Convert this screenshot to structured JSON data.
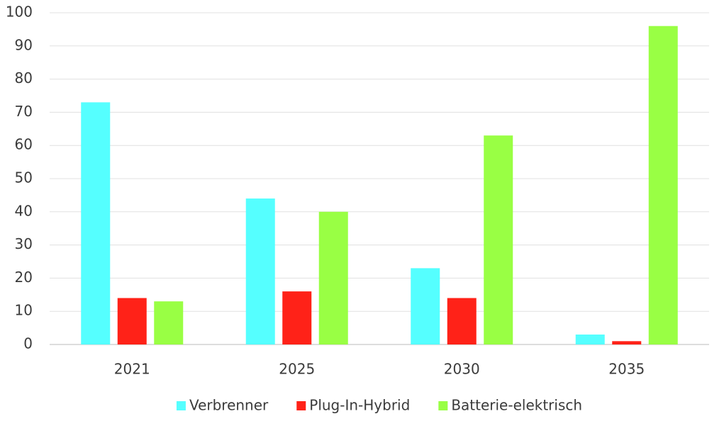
{
  "chart_data": {
    "type": "bar",
    "categories": [
      "2021",
      "2025",
      "2030",
      "2035"
    ],
    "series": [
      {
        "name": "Verbrenner",
        "color": "#55ffff",
        "values": [
          73,
          44,
          23,
          3
        ]
      },
      {
        "name": "Plug-In-Hybrid",
        "color": "#ff2218",
        "values": [
          14,
          16,
          14,
          1
        ]
      },
      {
        "name": "Batterie-elektrisch",
        "color": "#99ff44",
        "values": [
          13,
          40,
          63,
          96
        ]
      }
    ],
    "ylim": [
      0,
      100
    ],
    "yticks": [
      0,
      10,
      20,
      30,
      40,
      50,
      60,
      70,
      80,
      90,
      100
    ],
    "grid": true,
    "legend": "bottom"
  }
}
